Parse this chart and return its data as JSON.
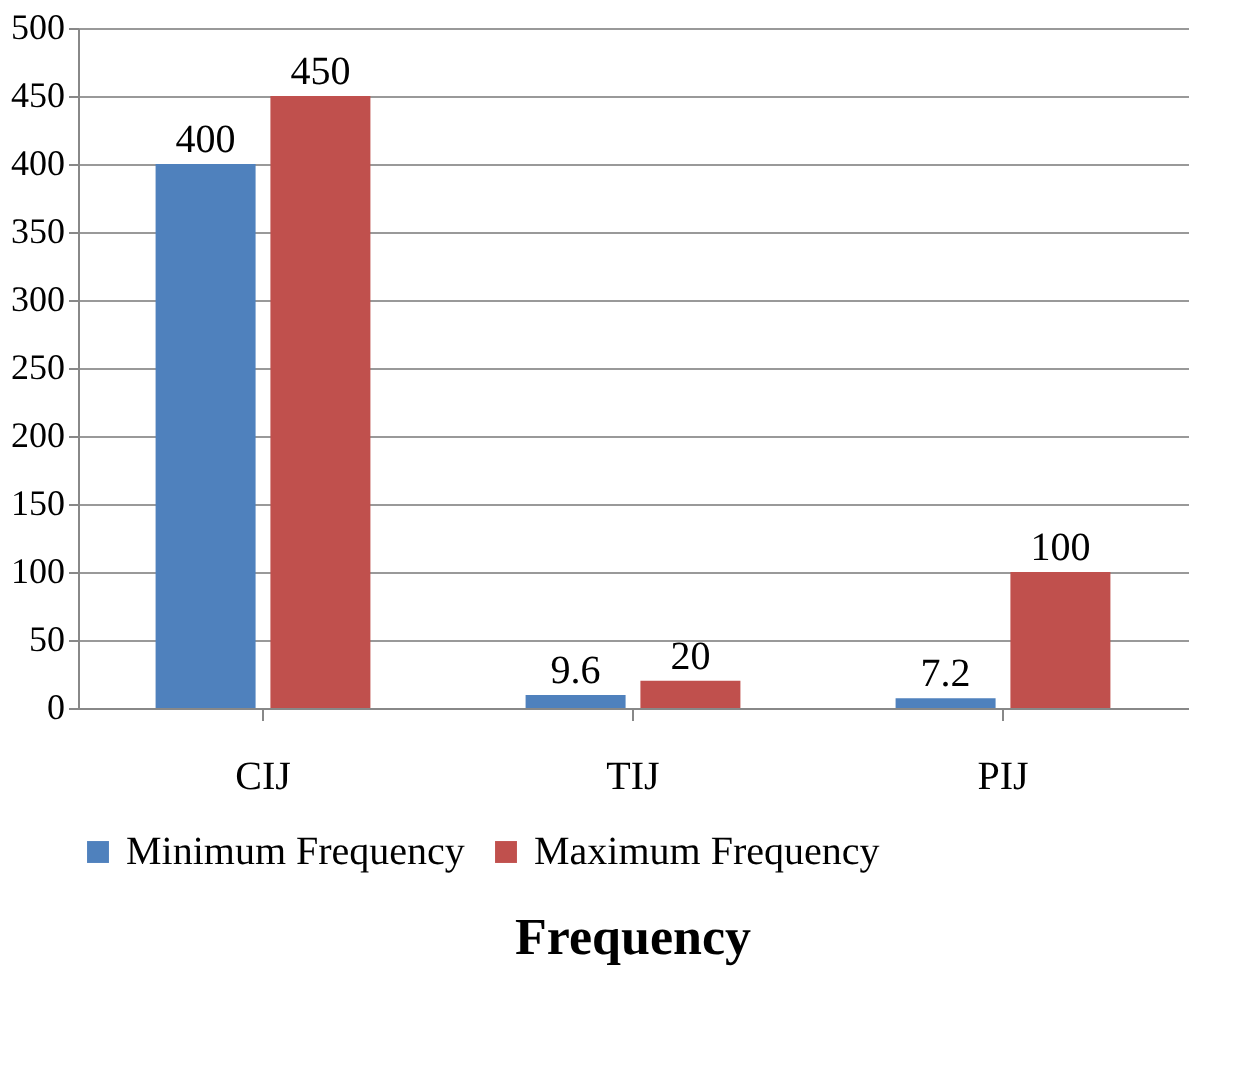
{
  "chart_data": {
    "type": "bar",
    "title": "Frequency",
    "categories": [
      "CIJ",
      "TIJ",
      "PIJ"
    ],
    "series": [
      {
        "name": "Minimum Frequency",
        "color": "#4f81bd",
        "values": [
          400,
          9.6,
          7.2
        ]
      },
      {
        "name": "Maximum Frequency",
        "color": "#c0504d",
        "values": [
          450,
          20,
          100
        ]
      }
    ],
    "ylim": [
      0,
      500
    ],
    "yticks": [
      0,
      50,
      100,
      150,
      200,
      250,
      300,
      350,
      400,
      450,
      500
    ],
    "grid": "y",
    "legend": "bottom",
    "data_labels": true
  }
}
